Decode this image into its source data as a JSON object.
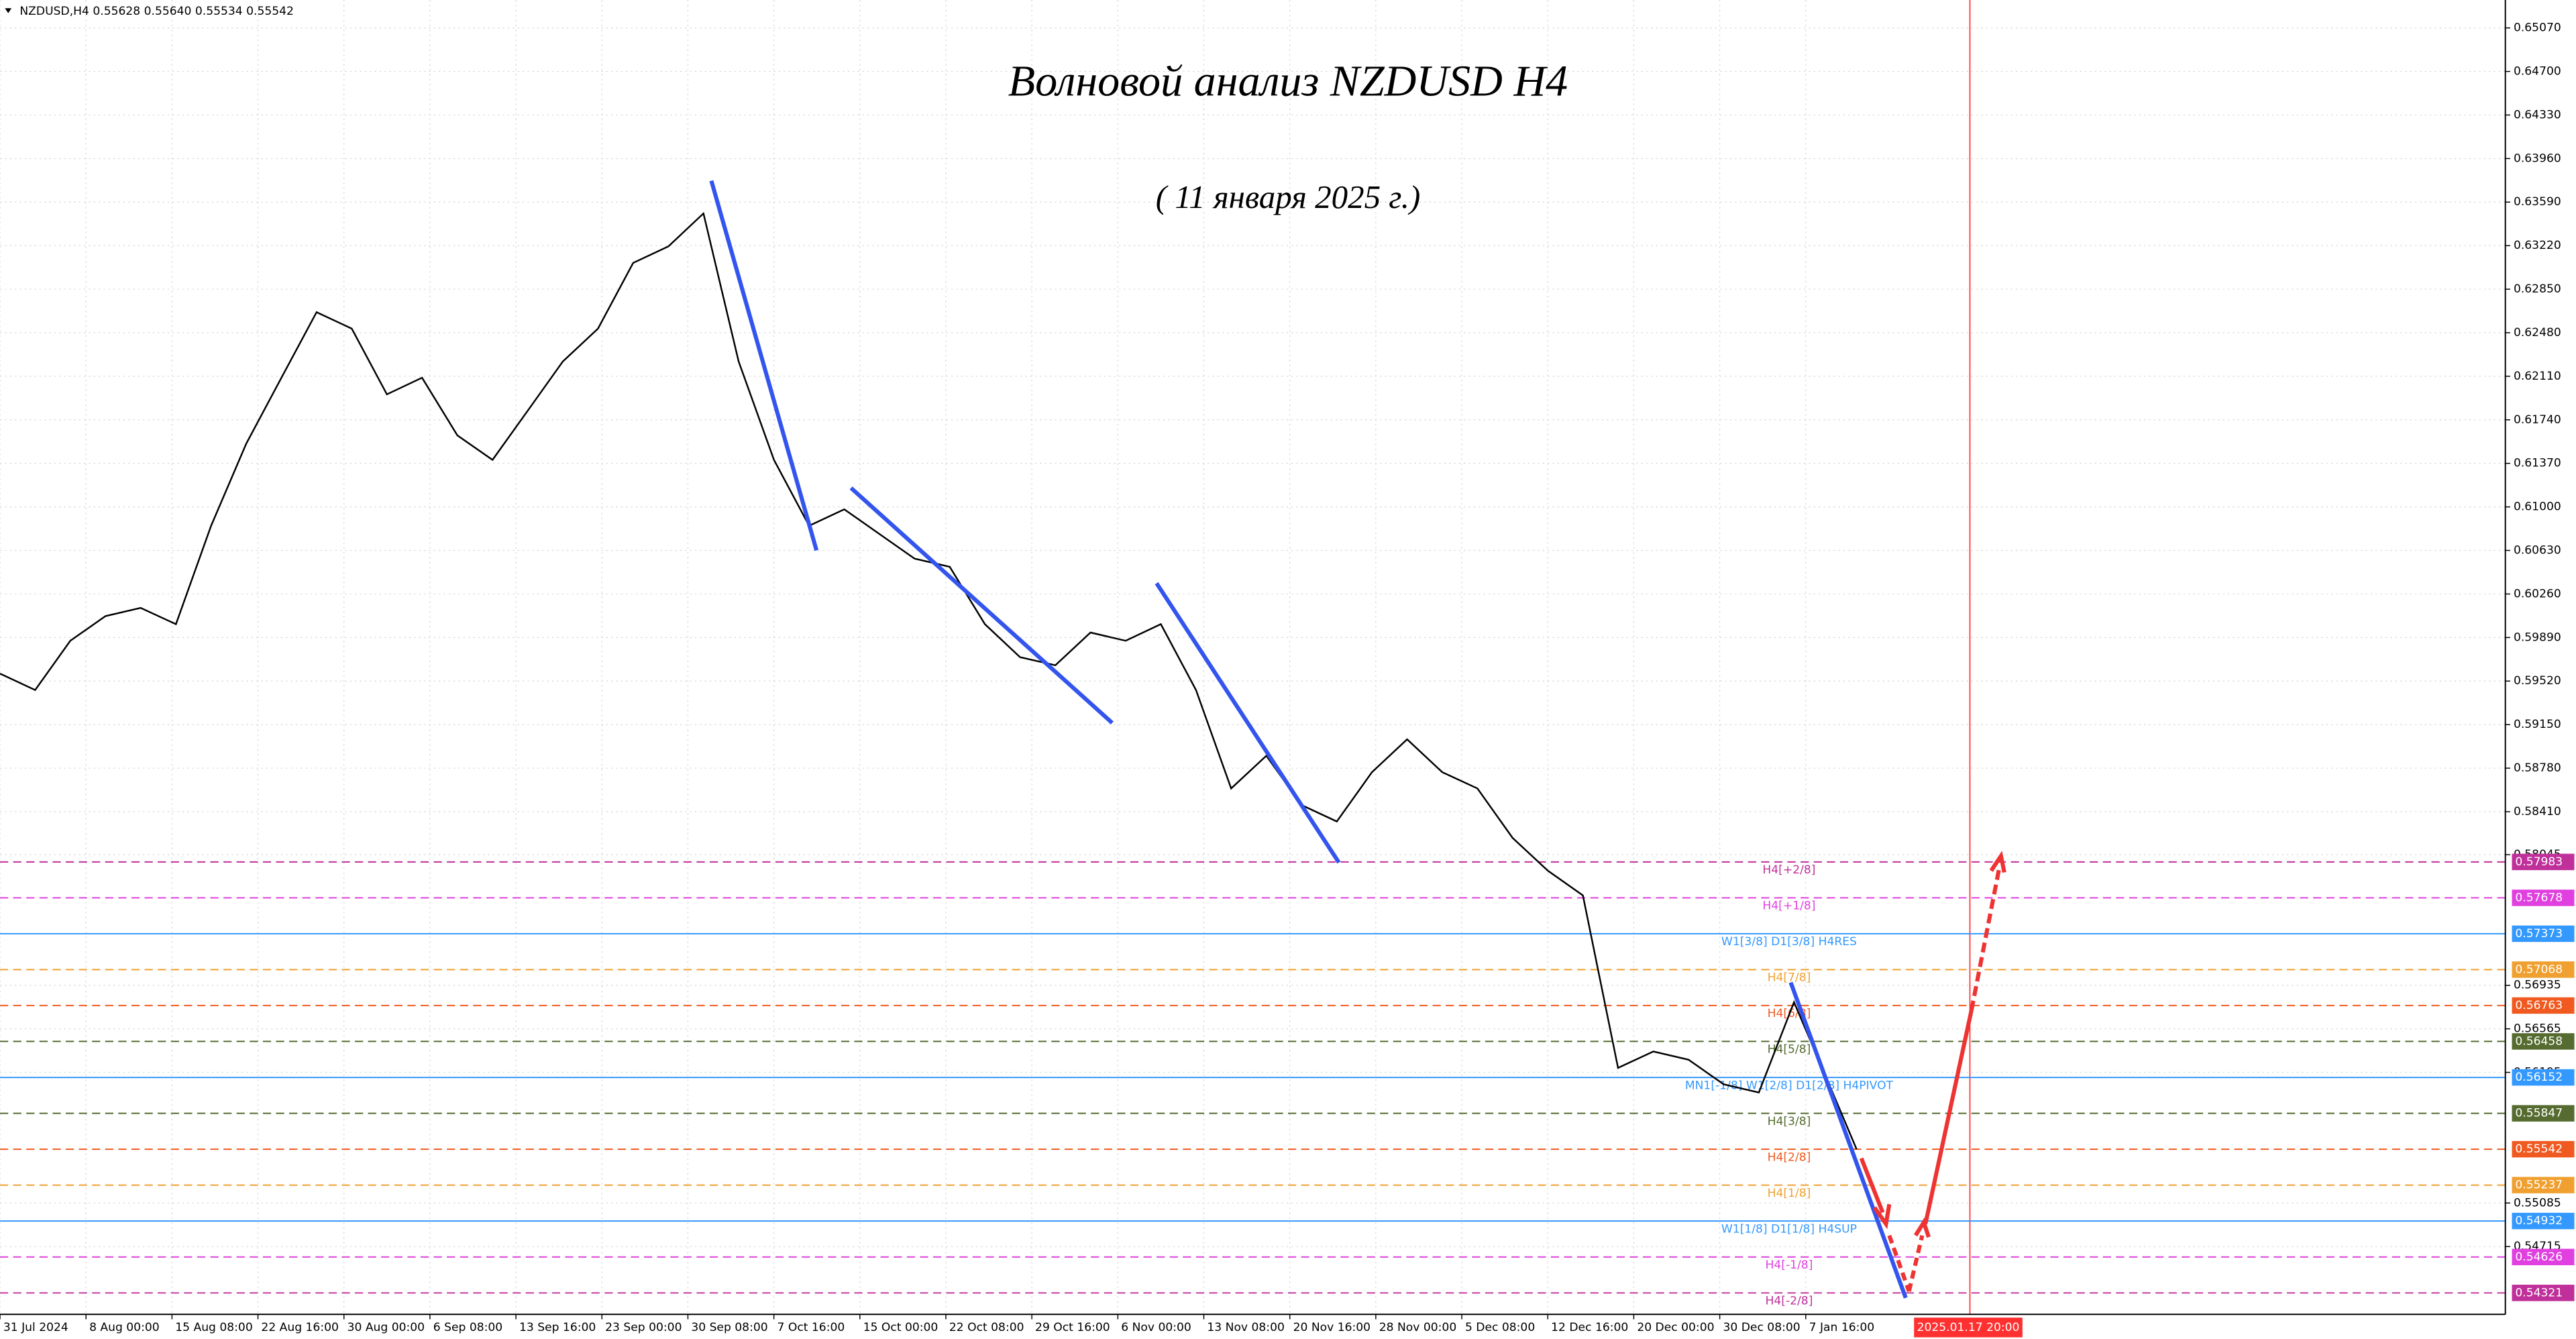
{
  "chart_data": {
    "type": "line",
    "header": "NZDUSD,H4  0.55628 0.55640 0.55534 0.55542",
    "title": "Волновой анализ NZDUSD H4",
    "subtitle": "( 11 января 2025 г.)",
    "x": [
      0,
      18,
      36,
      54,
      72,
      90,
      108,
      126,
      144,
      162,
      180,
      198,
      216,
      234,
      252,
      270,
      288,
      306,
      324,
      342,
      360,
      378,
      396,
      414,
      432,
      450,
      468,
      486,
      504,
      522,
      540,
      558,
      576,
      594,
      612,
      630,
      648,
      666,
      684,
      702,
      720,
      738,
      756,
      774,
      792,
      810,
      828,
      846,
      864,
      882,
      900,
      918,
      936,
      950
    ],
    "series": [
      {
        "name": "NZDUSD",
        "color": "#000000",
        "values": [
          0.59584,
          0.59444,
          0.59863,
          0.60072,
          0.60142,
          0.60003,
          0.6084,
          0.61538,
          0.62097,
          0.62655,
          0.62515,
          0.61957,
          0.62097,
          0.61608,
          0.61399,
          0.61817,
          0.62236,
          0.62515,
          0.63074,
          0.63213,
          0.63493,
          0.62236,
          0.61399,
          0.6084,
          0.6098,
          0.6077,
          0.60561,
          0.60491,
          0.60003,
          0.59723,
          0.59654,
          0.59933,
          0.59863,
          0.60003,
          0.59444,
          0.58607,
          0.58886,
          0.58467,
          0.58327,
          0.58746,
          0.59025,
          0.58746,
          0.58607,
          0.58188,
          0.57909,
          0.57699,
          0.56233,
          0.56373,
          0.56303,
          0.56094,
          0.56024,
          0.56792,
          0.56094,
          0.55542
        ]
      }
    ],
    "xlim": [
      0,
      1282
    ],
    "xticks": [
      {
        "value": 0,
        "label": "31 Jul 2024"
      },
      {
        "value": 44,
        "label": "8 Aug 00:00"
      },
      {
        "value": 88,
        "label": "15 Aug 08:00"
      },
      {
        "value": 132,
        "label": "22 Aug 16:00"
      },
      {
        "value": 176,
        "label": "30 Aug 00:00"
      },
      {
        "value": 220,
        "label": "6 Sep 08:00"
      },
      {
        "value": 264,
        "label": "13 Sep 16:00"
      },
      {
        "value": 308,
        "label": "23 Sep 00:00"
      },
      {
        "value": 352,
        "label": "30 Sep 08:00"
      },
      {
        "value": 396,
        "label": "7 Oct 16:00"
      },
      {
        "value": 440,
        "label": "15 Oct 00:00"
      },
      {
        "value": 484,
        "label": "22 Oct 08:00"
      },
      {
        "value": 528,
        "label": "29 Oct 16:00"
      },
      {
        "value": 572,
        "label": "6 Nov 00:00"
      },
      {
        "value": 616,
        "label": "13 Nov 08:00"
      },
      {
        "value": 660,
        "label": "20 Nov 16:00"
      },
      {
        "value": 704,
        "label": "28 Nov 00:00"
      },
      {
        "value": 748,
        "label": "5 Dec 08:00"
      },
      {
        "value": 792,
        "label": "12 Dec 16:00"
      },
      {
        "value": 836,
        "label": "20 Dec 00:00"
      },
      {
        "value": 880,
        "label": "30 Dec 08:00"
      },
      {
        "value": 924,
        "label": "7 Jan 16:00"
      }
    ],
    "time_marker": {
      "value": 1008,
      "label": "2025.01.17 20:00",
      "color": "#ff3030"
    },
    "ylim": [
      0.54139,
      0.65307
    ],
    "yticks": [
      {
        "value": 0.6507,
        "label": "0.65070"
      },
      {
        "value": 0.647,
        "label": "0.64700"
      },
      {
        "value": 0.6433,
        "label": "0.64330"
      },
      {
        "value": 0.6396,
        "label": "0.63960"
      },
      {
        "value": 0.6359,
        "label": "0.63590"
      },
      {
        "value": 0.6322,
        "label": "0.63220"
      },
      {
        "value": 0.6285,
        "label": "0.62850"
      },
      {
        "value": 0.6248,
        "label": "0.62480"
      },
      {
        "value": 0.6211,
        "label": "0.62110"
      },
      {
        "value": 0.6174,
        "label": "0.61740"
      },
      {
        "value": 0.6137,
        "label": "0.61370"
      },
      {
        "value": 0.61,
        "label": "0.61000"
      },
      {
        "value": 0.6063,
        "label": "0.60630"
      },
      {
        "value": 0.6026,
        "label": "0.60260"
      },
      {
        "value": 0.5989,
        "label": "0.59890"
      },
      {
        "value": 0.5952,
        "label": "0.59520"
      },
      {
        "value": 0.5915,
        "label": "0.59150"
      },
      {
        "value": 0.5878,
        "label": "0.58780"
      },
      {
        "value": 0.5841,
        "label": "0.58410"
      },
      {
        "value": 0.58045,
        "label": "0.58045"
      },
      {
        "value": 0.56935,
        "label": "0.56935"
      },
      {
        "value": 0.56565,
        "label": "0.56565"
      },
      {
        "value": 0.56195,
        "label": "0.56195"
      },
      {
        "value": 0.55085,
        "label": "0.55085"
      },
      {
        "value": 0.54715,
        "label": "0.54715"
      }
    ],
    "grid": true,
    "levels": [
      {
        "name": "H4[+2/8]",
        "value": 0.57983,
        "color": "#c0309a",
        "dashed": true
      },
      {
        "name": "H4[+1/8]",
        "value": 0.57678,
        "color": "#e040e0",
        "dashed": true
      },
      {
        "name": "W1[3/8] D1[3/8] H4RES",
        "value": 0.57373,
        "color": "#3399ff",
        "dashed": false
      },
      {
        "name": "H4[7/8]",
        "value": 0.57068,
        "color": "#f0a030",
        "dashed": true
      },
      {
        "name": "H4[6/8]",
        "value": 0.56763,
        "color": "#f05a20",
        "dashed": true
      },
      {
        "name": "H4[5/8]",
        "value": 0.56458,
        "color": "#556b2f",
        "dashed": true
      },
      {
        "name": "MN1[-1/8] W1[2/8] D1[2/8] H4PIVOT",
        "value": 0.56152,
        "color": "#3399ff",
        "dashed": false
      },
      {
        "name": "H4[3/8]",
        "value": 0.55847,
        "color": "#556b2f",
        "dashed": true
      },
      {
        "name": "H4[2/8]",
        "value": 0.55542,
        "color": "#f05a20",
        "dashed": true
      },
      {
        "name": "H4[1/8]",
        "value": 0.55237,
        "color": "#f0a030",
        "dashed": true
      },
      {
        "name": "W1[1/8] D1[1/8] H4SUP",
        "value": 0.54932,
        "color": "#3399ff",
        "dashed": false
      },
      {
        "name": "H4[-1/8]",
        "value": 0.54626,
        "color": "#e040e0",
        "dashed": true
      },
      {
        "name": "H4[-2/8]",
        "value": 0.54321,
        "color": "#c0309a",
        "dashed": true
      }
    ]
  }
}
